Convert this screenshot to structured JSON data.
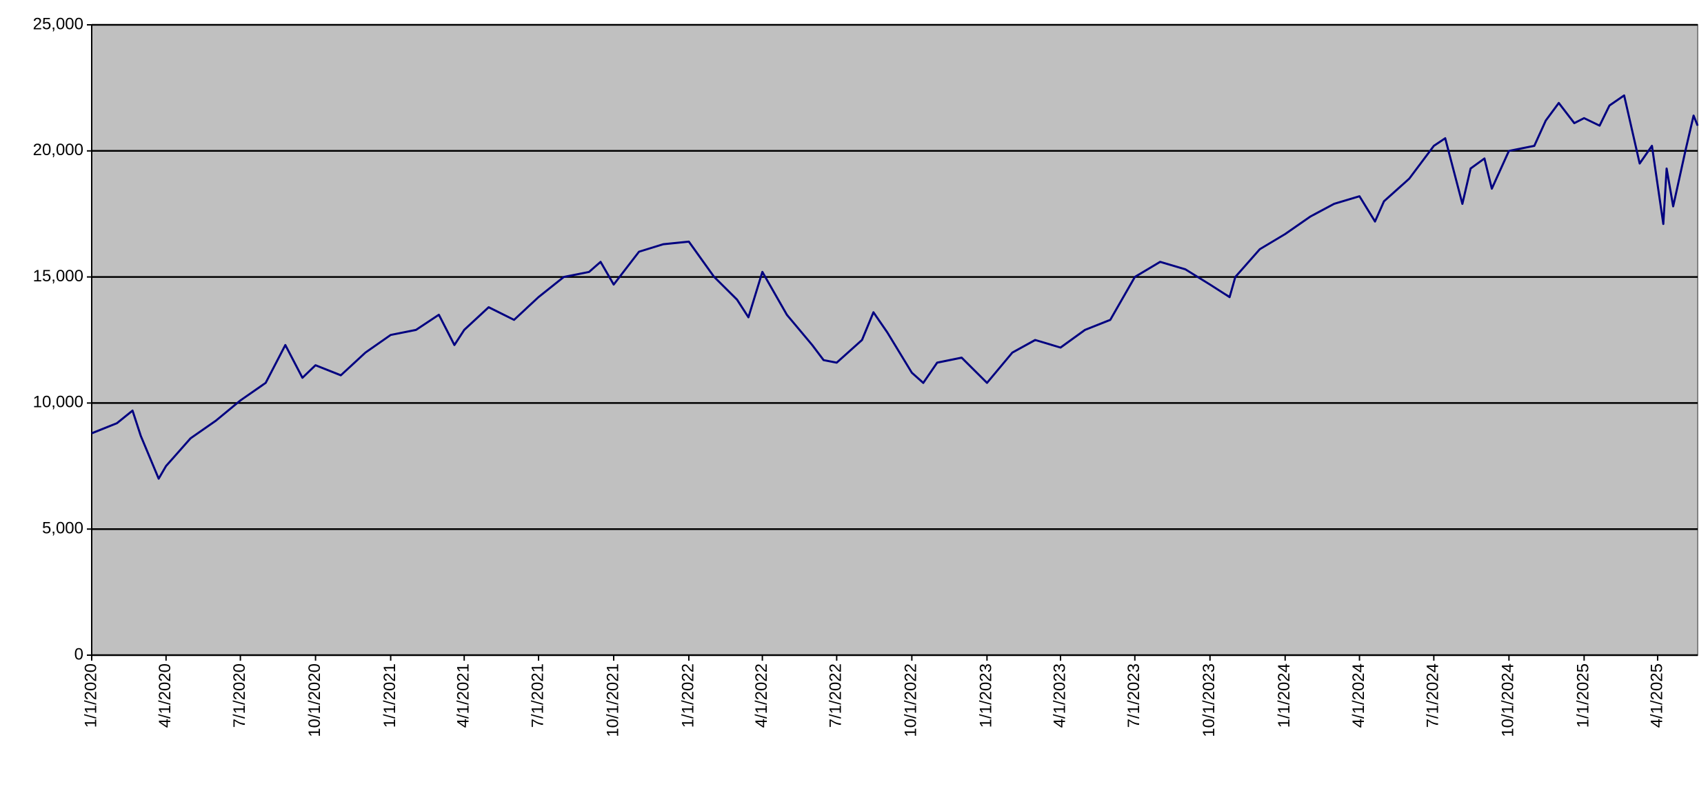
{
  "chart_data": {
    "type": "line",
    "x": [
      "1/1/2020",
      "2/1/2020",
      "2/20/2020",
      "3/1/2020",
      "3/23/2020",
      "4/1/2020",
      "5/1/2020",
      "6/1/2020",
      "7/1/2020",
      "8/1/2020",
      "8/25/2020",
      "9/15/2020",
      "10/1/2020",
      "11/1/2020",
      "12/1/2020",
      "1/1/2021",
      "2/1/2021",
      "3/1/2021",
      "3/20/2021",
      "4/1/2021",
      "5/1/2021",
      "6/1/2021",
      "7/1/2021",
      "8/1/2021",
      "9/1/2021",
      "9/15/2021",
      "10/1/2021",
      "11/1/2021",
      "12/1/2021",
      "1/1/2022",
      "2/1/2022",
      "3/1/2022",
      "3/15/2022",
      "4/1/2022",
      "5/1/2022",
      "6/1/2022",
      "6/15/2022",
      "7/1/2022",
      "8/1/2022",
      "8/15/2022",
      "9/1/2022",
      "10/1/2022",
      "10/15/2022",
      "11/1/2022",
      "12/1/2022",
      "1/1/2023",
      "2/1/2023",
      "3/1/2023",
      "4/1/2023",
      "5/1/2023",
      "6/1/2023",
      "7/1/2023",
      "8/1/2023",
      "9/1/2023",
      "10/1/2023",
      "10/25/2023",
      "11/1/2023",
      "12/1/2023",
      "1/1/2024",
      "2/1/2024",
      "3/1/2024",
      "4/1/2024",
      "4/20/2024",
      "5/1/2024",
      "6/1/2024",
      "7/1/2024",
      "7/15/2024",
      "8/5/2024",
      "8/15/2024",
      "9/1/2024",
      "9/10/2024",
      "10/1/2024",
      "11/1/2024",
      "11/15/2024",
      "12/1/2024",
      "12/20/2024",
      "1/1/2025",
      "1/20/2025",
      "2/1/2025",
      "2/19/2025",
      "3/10/2025",
      "3/25/2025",
      "4/8/2025",
      "4/12/2025",
      "4/20/2025",
      "5/5/2025",
      "5/15/2025",
      "5/20/2025"
    ],
    "series": [
      {
        "color": "#000080",
        "values": [
          8800,
          9200,
          9700,
          8700,
          7000,
          7500,
          8600,
          9300,
          10100,
          10800,
          12300,
          11000,
          11500,
          11100,
          12000,
          12700,
          12900,
          13500,
          12300,
          12900,
          13800,
          13300,
          14200,
          15000,
          15200,
          15600,
          14700,
          16000,
          16300,
          16400,
          15000,
          14100,
          13400,
          15200,
          13500,
          12300,
          11700,
          11600,
          12500,
          13600,
          12800,
          11200,
          10800,
          11600,
          11800,
          10800,
          12000,
          12500,
          12200,
          12900,
          13300,
          15000,
          15600,
          15300,
          14700,
          14200,
          15000,
          16100,
          16700,
          17400,
          17900,
          18200,
          17200,
          18000,
          18900,
          20200,
          20500,
          17900,
          19300,
          19700,
          18500,
          20000,
          20200,
          21200,
          21900,
          21100,
          21300,
          21000,
          21800,
          22200,
          19500,
          20200,
          17100,
          19300,
          17800,
          20000,
          21400,
          21000
        ]
      }
    ],
    "xlim": [
      "1/1/2020",
      "5/20/2025"
    ],
    "xticks": [
      "1/1/2020",
      "4/1/2020",
      "7/1/2020",
      "10/1/2020",
      "1/1/2021",
      "4/1/2021",
      "7/1/2021",
      "10/1/2021",
      "1/1/2022",
      "4/1/2022",
      "7/1/2022",
      "10/1/2022",
      "1/1/2023",
      "4/1/2023",
      "7/1/2023",
      "10/1/2023",
      "1/1/2024",
      "4/1/2024",
      "7/1/2024",
      "10/1/2024",
      "1/1/2025",
      "4/1/2025"
    ],
    "ylim": [
      0,
      25000
    ],
    "yticks": [
      0,
      {
        "value": 5000,
        "label": "5,000"
      },
      {
        "value": 10000,
        "label": "10,000"
      },
      {
        "value": 15000,
        "label": "15,000"
      },
      {
        "value": 20000,
        "label": "20,000"
      },
      {
        "value": 25000,
        "label": "25,000"
      }
    ],
    "grid": true,
    "background": "#c0c0c0"
  }
}
